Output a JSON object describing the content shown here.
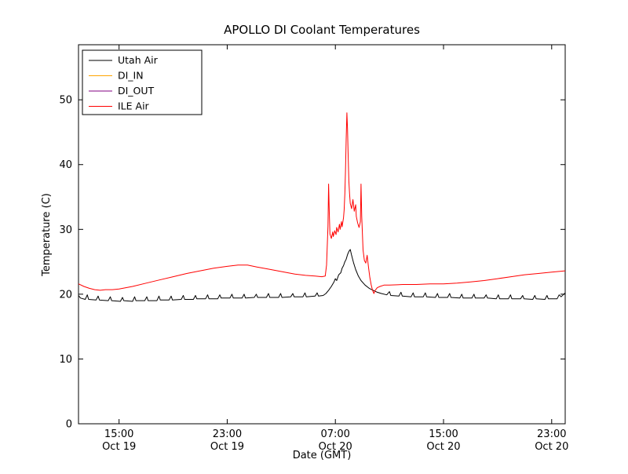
{
  "chart_data": {
    "type": "line",
    "title": "APOLLO DI Coolant Temperatures",
    "xlabel": "Date (GMT)",
    "ylabel": "Temperature (C)",
    "x_unit": "hours since Oct 19 12:00 GMT",
    "xlim": [
      0,
      36
    ],
    "ylim": [
      0,
      58.5
    ],
    "y_ticks": [
      0,
      10,
      20,
      30,
      40,
      50
    ],
    "x_ticks": [
      {
        "x": 3,
        "time": "15:00",
        "date": "Oct 19"
      },
      {
        "x": 11,
        "time": "23:00",
        "date": "Oct 19"
      },
      {
        "x": 19,
        "time": "07:00",
        "date": "Oct 20"
      },
      {
        "x": 27,
        "time": "15:00",
        "date": "Oct 20"
      },
      {
        "x": 35,
        "time": "23:00",
        "date": "Oct 20"
      }
    ],
    "grid": false,
    "legend_position": "upper-left",
    "background": "#ffffff",
    "frame_color": "#000000",
    "series": [
      {
        "name": "Utah Air",
        "color": "#000000",
        "points": [
          [
            0,
            19.8
          ],
          [
            0.15,
            19.4
          ],
          [
            0.5,
            19.2
          ],
          [
            0.65,
            19.9
          ],
          [
            0.75,
            19.2
          ],
          [
            1.3,
            19.1
          ],
          [
            1.45,
            19.7
          ],
          [
            1.55,
            19.1
          ],
          [
            2.2,
            19.0
          ],
          [
            2.35,
            19.6
          ],
          [
            2.45,
            19.0
          ],
          [
            3.1,
            18.9
          ],
          [
            3.25,
            19.5
          ],
          [
            3.35,
            19.0
          ],
          [
            4.0,
            18.9
          ],
          [
            4.15,
            19.6
          ],
          [
            4.25,
            19.0
          ],
          [
            4.9,
            19.0
          ],
          [
            5.05,
            19.6
          ],
          [
            5.15,
            19.0
          ],
          [
            5.8,
            19.0
          ],
          [
            5.95,
            19.7
          ],
          [
            6.05,
            19.1
          ],
          [
            6.7,
            19.1
          ],
          [
            6.85,
            19.7
          ],
          [
            6.95,
            19.1
          ],
          [
            7.6,
            19.2
          ],
          [
            7.75,
            19.8
          ],
          [
            7.85,
            19.2
          ],
          [
            8.5,
            19.2
          ],
          [
            8.65,
            19.8
          ],
          [
            8.75,
            19.3
          ],
          [
            9.4,
            19.3
          ],
          [
            9.55,
            19.9
          ],
          [
            9.65,
            19.3
          ],
          [
            10.3,
            19.3
          ],
          [
            10.45,
            19.9
          ],
          [
            10.55,
            19.4
          ],
          [
            11.2,
            19.4
          ],
          [
            11.35,
            20.0
          ],
          [
            11.45,
            19.4
          ],
          [
            12.1,
            19.4
          ],
          [
            12.25,
            20.0
          ],
          [
            12.35,
            19.4
          ],
          [
            13.0,
            19.5
          ],
          [
            13.15,
            20.0
          ],
          [
            13.25,
            19.5
          ],
          [
            13.9,
            19.5
          ],
          [
            14.05,
            20.1
          ],
          [
            14.15,
            19.5
          ],
          [
            14.8,
            19.5
          ],
          [
            14.95,
            20.1
          ],
          [
            15.05,
            19.5
          ],
          [
            15.7,
            19.6
          ],
          [
            15.85,
            20.1
          ],
          [
            15.95,
            19.6
          ],
          [
            16.6,
            19.6
          ],
          [
            16.75,
            20.2
          ],
          [
            16.85,
            19.6
          ],
          [
            17.5,
            19.7
          ],
          [
            17.65,
            20.2
          ],
          [
            17.75,
            19.7
          ],
          [
            18.1,
            19.8
          ],
          [
            18.3,
            20.1
          ],
          [
            18.5,
            20.6
          ],
          [
            18.7,
            21.2
          ],
          [
            18.9,
            21.9
          ],
          [
            19.0,
            22.4
          ],
          [
            19.1,
            22.1
          ],
          [
            19.25,
            23.0
          ],
          [
            19.4,
            23.3
          ],
          [
            19.5,
            24.0
          ],
          [
            19.6,
            24.4
          ],
          [
            19.7,
            25.0
          ],
          [
            19.8,
            25.4
          ],
          [
            19.9,
            26.1
          ],
          [
            20.0,
            26.6
          ],
          [
            20.1,
            26.9
          ],
          [
            20.2,
            26.0
          ],
          [
            20.35,
            24.8
          ],
          [
            20.5,
            23.8
          ],
          [
            20.7,
            22.8
          ],
          [
            20.9,
            22.1
          ],
          [
            21.2,
            21.4
          ],
          [
            21.5,
            20.9
          ],
          [
            21.8,
            20.6
          ],
          [
            22.1,
            20.3
          ],
          [
            22.4,
            20.1
          ],
          [
            22.8,
            19.9
          ],
          [
            23.0,
            20.4
          ],
          [
            23.1,
            19.8
          ],
          [
            23.7,
            19.7
          ],
          [
            23.85,
            20.3
          ],
          [
            23.95,
            19.7
          ],
          [
            24.6,
            19.6
          ],
          [
            24.75,
            20.2
          ],
          [
            24.85,
            19.6
          ],
          [
            25.5,
            19.6
          ],
          [
            25.65,
            20.2
          ],
          [
            25.75,
            19.6
          ],
          [
            26.4,
            19.5
          ],
          [
            26.55,
            20.1
          ],
          [
            26.65,
            19.5
          ],
          [
            27.3,
            19.5
          ],
          [
            27.45,
            20.1
          ],
          [
            27.55,
            19.5
          ],
          [
            28.2,
            19.4
          ],
          [
            28.35,
            20.0
          ],
          [
            28.45,
            19.4
          ],
          [
            29.1,
            19.4
          ],
          [
            29.25,
            20.0
          ],
          [
            29.35,
            19.4
          ],
          [
            30.0,
            19.4
          ],
          [
            30.15,
            19.9
          ],
          [
            30.25,
            19.4
          ],
          [
            30.9,
            19.3
          ],
          [
            31.05,
            19.9
          ],
          [
            31.15,
            19.3
          ],
          [
            31.8,
            19.3
          ],
          [
            31.95,
            19.9
          ],
          [
            32.05,
            19.3
          ],
          [
            32.7,
            19.3
          ],
          [
            32.85,
            19.8
          ],
          [
            32.95,
            19.3
          ],
          [
            33.6,
            19.2
          ],
          [
            33.75,
            19.8
          ],
          [
            33.85,
            19.3
          ],
          [
            34.5,
            19.2
          ],
          [
            34.65,
            19.8
          ],
          [
            34.75,
            19.3
          ],
          [
            35.4,
            19.3
          ],
          [
            35.55,
            19.9
          ],
          [
            35.7,
            19.6
          ],
          [
            36,
            20.2
          ]
        ]
      },
      {
        "name": "DI_IN",
        "color": "#ffa500",
        "points": []
      },
      {
        "name": "DI_OUT",
        "color": "#800080",
        "points": []
      },
      {
        "name": "ILE Air",
        "color": "#ff0000",
        "points": [
          [
            0,
            21.6
          ],
          [
            0.4,
            21.2
          ],
          [
            0.8,
            20.9
          ],
          [
            1.2,
            20.7
          ],
          [
            1.6,
            20.6
          ],
          [
            2.0,
            20.7
          ],
          [
            2.5,
            20.7
          ],
          [
            3.0,
            20.8
          ],
          [
            3.5,
            21.0
          ],
          [
            4.0,
            21.2
          ],
          [
            5.0,
            21.7
          ],
          [
            6.0,
            22.2
          ],
          [
            7.0,
            22.7
          ],
          [
            8.0,
            23.2
          ],
          [
            9.0,
            23.6
          ],
          [
            10.0,
            24.0
          ],
          [
            11.0,
            24.3
          ],
          [
            11.8,
            24.5
          ],
          [
            12.5,
            24.5
          ],
          [
            13.2,
            24.2
          ],
          [
            14.0,
            23.9
          ],
          [
            15.0,
            23.5
          ],
          [
            16.0,
            23.1
          ],
          [
            16.8,
            22.9
          ],
          [
            17.5,
            22.8
          ],
          [
            18.0,
            22.7
          ],
          [
            18.25,
            22.8
          ],
          [
            18.35,
            24.5
          ],
          [
            18.45,
            30.5
          ],
          [
            18.5,
            37.0
          ],
          [
            18.55,
            32.5
          ],
          [
            18.6,
            29.3
          ],
          [
            18.7,
            28.6
          ],
          [
            18.8,
            29.6
          ],
          [
            18.85,
            28.9
          ],
          [
            18.95,
            29.8
          ],
          [
            19.05,
            29.2
          ],
          [
            19.1,
            30.3
          ],
          [
            19.2,
            29.6
          ],
          [
            19.3,
            30.8
          ],
          [
            19.35,
            30.0
          ],
          [
            19.45,
            31.2
          ],
          [
            19.5,
            30.4
          ],
          [
            19.6,
            31.8
          ],
          [
            19.65,
            33.0
          ],
          [
            19.7,
            35.5
          ],
          [
            19.75,
            39.0
          ],
          [
            19.8,
            44.0
          ],
          [
            19.85,
            48.0
          ],
          [
            19.9,
            45.5
          ],
          [
            19.95,
            41.0
          ],
          [
            20.0,
            37.5
          ],
          [
            20.05,
            35.5
          ],
          [
            20.1,
            34.0
          ],
          [
            20.2,
            33.2
          ],
          [
            20.3,
            34.6
          ],
          [
            20.4,
            32.8
          ],
          [
            20.5,
            33.8
          ],
          [
            20.55,
            32.0
          ],
          [
            20.65,
            31.0
          ],
          [
            20.75,
            30.3
          ],
          [
            20.85,
            31.2
          ],
          [
            20.9,
            37.0
          ],
          [
            20.95,
            32.0
          ],
          [
            21.05,
            26.8
          ],
          [
            21.15,
            25.2
          ],
          [
            21.25,
            24.8
          ],
          [
            21.35,
            26.0
          ],
          [
            21.45,
            24.2
          ],
          [
            21.55,
            22.6
          ],
          [
            21.65,
            21.4
          ],
          [
            21.75,
            20.6
          ],
          [
            21.85,
            20.1
          ],
          [
            21.95,
            20.6
          ],
          [
            22.1,
            21.0
          ],
          [
            22.3,
            21.2
          ],
          [
            22.6,
            21.4
          ],
          [
            23.0,
            21.4
          ],
          [
            24.0,
            21.5
          ],
          [
            25.0,
            21.5
          ],
          [
            26.0,
            21.6
          ],
          [
            27.0,
            21.6
          ],
          [
            28.0,
            21.7
          ],
          [
            29.0,
            21.9
          ],
          [
            30.0,
            22.1
          ],
          [
            31.0,
            22.4
          ],
          [
            32.0,
            22.7
          ],
          [
            33.0,
            23.0
          ],
          [
            34.0,
            23.2
          ],
          [
            35.0,
            23.4
          ],
          [
            36.0,
            23.6
          ]
        ]
      }
    ]
  }
}
